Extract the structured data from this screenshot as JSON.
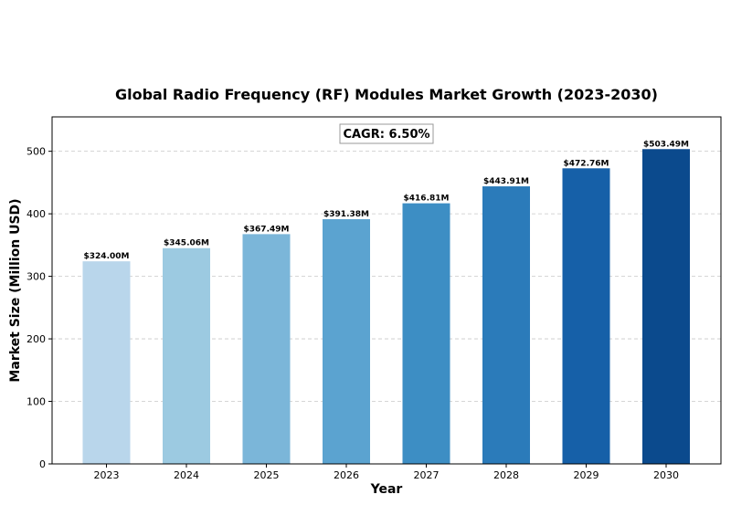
{
  "chart_data": {
    "type": "bar",
    "title": "Global Radio Frequency (RF) Modules Market Growth (2023-2030)",
    "xlabel": "Year",
    "ylabel": "Market Size (Million USD)",
    "categories": [
      "2023",
      "2024",
      "2025",
      "2026",
      "2027",
      "2028",
      "2029",
      "2030"
    ],
    "values": [
      324.0,
      345.06,
      367.49,
      391.38,
      416.81,
      443.91,
      472.76,
      503.49
    ],
    "value_labels": [
      "$324.00M",
      "$345.06M",
      "$367.49M",
      "$391.38M",
      "$416.81M",
      "$443.91M",
      "$472.76M",
      "$503.49M"
    ],
    "colors": [
      "#b9d6eb",
      "#9ccae1",
      "#7bb6d9",
      "#5ba3d0",
      "#3d8ec4",
      "#2b7bba",
      "#1660a8",
      "#0b4a8d"
    ],
    "ylim": [
      0,
      555
    ],
    "yticks": [
      0,
      100,
      200,
      300,
      400,
      500
    ],
    "grid": "y-dashed",
    "annotation": "CAGR: 6.50%"
  }
}
